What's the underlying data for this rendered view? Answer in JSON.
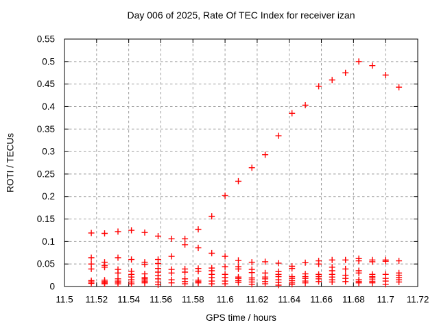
{
  "chart_data": {
    "type": "scatter",
    "title": "Day 006 of 2025, Rate Of TEC Index for receiver izan",
    "xlabel": "GPS time / hours",
    "ylabel": "ROTI / TECUs",
    "xlim": [
      11.5,
      11.72
    ],
    "ylim": [
      0,
      0.55
    ],
    "xticks": [
      "11.5",
      "11.52",
      "11.54",
      "11.56",
      "11.58",
      "11.6",
      "11.62",
      "11.64",
      "11.66",
      "11.68",
      "11.7",
      "11.72"
    ],
    "yticks": [
      "0",
      "0.05",
      "0.1",
      "0.15",
      "0.2",
      "0.25",
      "0.3",
      "0.35",
      "0.4",
      "0.45",
      "0.5",
      "0.55"
    ],
    "grid": true,
    "legend_position": "none",
    "marker": "plus",
    "colors": {
      "marker": "#ff0000",
      "grid": "#9b9b9b",
      "axis": "#000000",
      "text": "#000000",
      "background": "#ffffff"
    },
    "columns": [
      {
        "t": 11.5167,
        "values": [
          0.119,
          0.064,
          0.05,
          0.039,
          0.013,
          0.01,
          0.007
        ]
      },
      {
        "t": 11.525,
        "values": [
          0.118,
          0.054,
          0.047,
          0.043,
          0.014,
          0.011,
          0.008,
          0.006
        ]
      },
      {
        "t": 11.5333,
        "values": [
          0.122,
          0.064,
          0.038,
          0.03,
          0.017,
          0.012,
          0.009,
          0.006
        ]
      },
      {
        "t": 11.5417,
        "values": [
          0.125,
          0.06,
          0.034,
          0.027,
          0.021,
          0.015,
          0.01,
          0.006
        ]
      },
      {
        "t": 11.55,
        "values": [
          0.12,
          0.054,
          0.049,
          0.028,
          0.02,
          0.017,
          0.014,
          0.011,
          0.008
        ]
      },
      {
        "t": 11.5583,
        "values": [
          0.112,
          0.06,
          0.051,
          0.04,
          0.032,
          0.024,
          0.017,
          0.01,
          0.004
        ]
      },
      {
        "t": 11.5667,
        "values": [
          0.106,
          0.067,
          0.038,
          0.03,
          0.015,
          0.008
        ]
      },
      {
        "t": 11.575,
        "values": [
          0.106,
          0.093,
          0.039,
          0.032,
          0.017,
          0.011,
          0.006
        ]
      },
      {
        "t": 11.5833,
        "values": [
          0.127,
          0.086,
          0.04,
          0.034,
          0.014,
          0.011,
          0.008
        ]
      },
      {
        "t": 11.5917,
        "values": [
          0.156,
          0.074,
          0.041,
          0.035,
          0.027,
          0.02,
          0.012,
          0.006
        ]
      },
      {
        "t": 11.6,
        "values": [
          0.202,
          0.067,
          0.044,
          0.027,
          0.02,
          0.012,
          0.006
        ]
      },
      {
        "t": 11.6083,
        "values": [
          0.234,
          0.058,
          0.044,
          0.039,
          0.021,
          0.018,
          0.013,
          0.009
        ]
      },
      {
        "t": 11.6167,
        "values": [
          0.264,
          0.054,
          0.038,
          0.031,
          0.019,
          0.015,
          0.01,
          0.005
        ]
      },
      {
        "t": 11.625,
        "values": [
          0.293,
          0.055,
          0.03,
          0.021,
          0.017,
          0.011,
          0.006
        ]
      },
      {
        "t": 11.6333,
        "values": [
          0.335,
          0.052,
          0.033,
          0.027,
          0.022,
          0.015,
          0.009,
          0.003
        ]
      },
      {
        "t": 11.6417,
        "values": [
          0.385,
          0.045,
          0.04,
          0.022,
          0.018,
          0.013,
          0.008,
          0.005
        ]
      },
      {
        "t": 11.65,
        "values": [
          0.403,
          0.053,
          0.028,
          0.022,
          0.018,
          0.012,
          0.008
        ]
      },
      {
        "t": 11.6583,
        "values": [
          0.445,
          0.057,
          0.05,
          0.027,
          0.022,
          0.017,
          0.011
        ]
      },
      {
        "t": 11.6667,
        "values": [
          0.459,
          0.059,
          0.043,
          0.035,
          0.027,
          0.021,
          0.015,
          0.01
        ]
      },
      {
        "t": 11.675,
        "values": [
          0.475,
          0.059,
          0.039,
          0.025,
          0.018,
          0.011
        ]
      },
      {
        "t": 11.6833,
        "values": [
          0.5,
          0.062,
          0.057,
          0.035,
          0.03,
          0.015,
          0.011,
          0.008
        ]
      },
      {
        "t": 11.6917,
        "values": [
          0.491,
          0.059,
          0.055,
          0.027,
          0.022,
          0.019,
          0.015,
          0.011,
          0.008
        ]
      },
      {
        "t": 11.7,
        "values": [
          0.47,
          0.059,
          0.056,
          0.027,
          0.018,
          0.012,
          0.005
        ]
      },
      {
        "t": 11.7083,
        "values": [
          0.443,
          0.057,
          0.03,
          0.025,
          0.02,
          0.015,
          0.01
        ]
      }
    ]
  }
}
